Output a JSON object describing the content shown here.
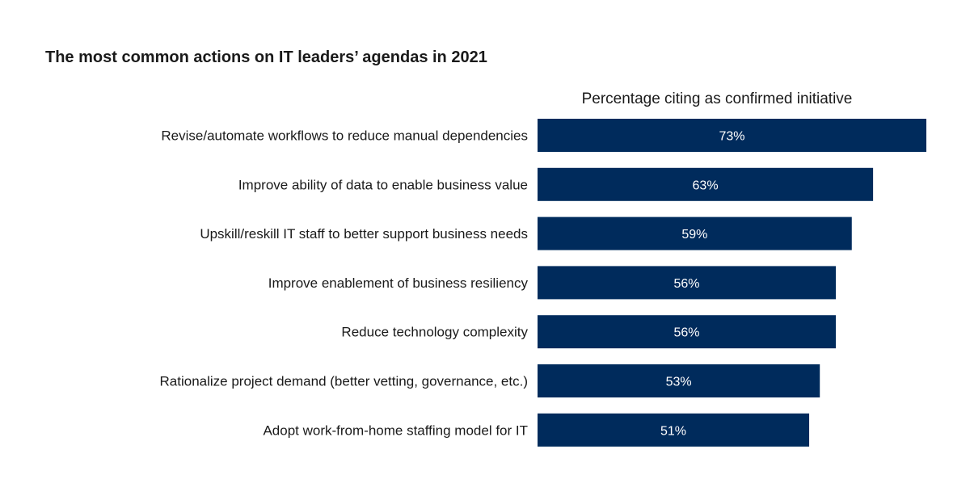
{
  "chart_data": {
    "type": "bar",
    "orientation": "horizontal",
    "title": "The most common actions on IT leaders’ agendas in 2021",
    "subtitle": "Percentage citing as confirmed initiative",
    "categories": [
      "Revise/automate workflows to reduce manual dependencies",
      "Improve ability of data to enable business value",
      "Upskill/reskill IT staff to better support business needs",
      "Improve enablement of business resiliency",
      "Reduce technology complexity",
      "Rationalize project demand (better vetting, governance, etc.)",
      "Adopt work-from-home staffing model for IT"
    ],
    "values": [
      73,
      63,
      59,
      56,
      56,
      53,
      51
    ],
    "data_labels": [
      "73%",
      "63%",
      "59%",
      "56%",
      "56%",
      "53%",
      "51%"
    ],
    "xlim": [
      0,
      73
    ],
    "grid": false,
    "bar_color": "#002b5c",
    "label_color": "#ffffff"
  }
}
